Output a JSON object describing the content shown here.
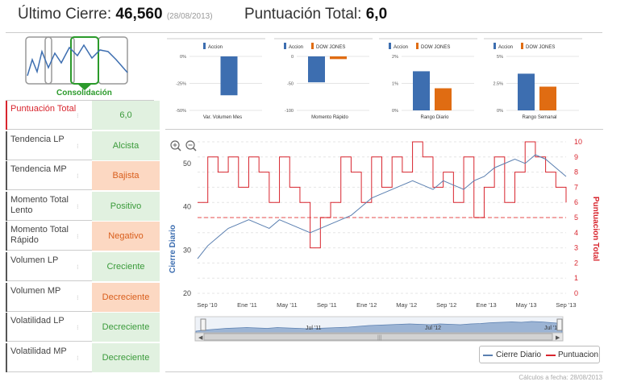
{
  "header": {
    "close_label": "Último Cierre:",
    "close_value": "46,560",
    "close_date": "(28/08/2013)",
    "score_label": "Puntuación Total:",
    "score_value": "6,0"
  },
  "phase": {
    "label": "Consolidación"
  },
  "rows": [
    {
      "label": "Puntuación Total",
      "value": "6,0",
      "tone": "green",
      "highlight": true
    },
    {
      "label": "Tendencia LP",
      "value": "Alcista",
      "tone": "green"
    },
    {
      "label": "Tendencia MP",
      "value": "Bajista",
      "tone": "orange"
    },
    {
      "label": "Momento Total Lento",
      "value": "Positivo",
      "tone": "green"
    },
    {
      "label": "Momento Total Rápido",
      "value": "Negativo",
      "tone": "orange"
    },
    {
      "label": "Volumen LP",
      "value": "Creciente",
      "tone": "green"
    },
    {
      "label": "Volumen MP",
      "value": "Decreciente",
      "tone": "orange"
    },
    {
      "label": "Volatilidad LP",
      "value": "Decreciente",
      "tone": "green"
    },
    {
      "label": "Volatilidad MP",
      "value": "Decreciente",
      "tone": "green"
    }
  ],
  "colors": {
    "accion": "#3d6eb0",
    "dowjones": "#e06c12",
    "red": "#d8252e",
    "blue": "#5a7fb0"
  },
  "chart_data": [
    {
      "type": "bar",
      "title": "Var. Volumen Mes",
      "legend": [
        "Accion"
      ],
      "series": [
        {
          "name": "Accion",
          "values": [
            -36
          ]
        }
      ],
      "yticks": [
        "0%",
        "-25%",
        "-50%"
      ],
      "ylim": [
        -50,
        0
      ]
    },
    {
      "type": "bar",
      "title": "Momento Rápido",
      "legend": [
        "Accion",
        "DOW JONES"
      ],
      "series": [
        {
          "name": "Accion",
          "values": [
            -48
          ]
        },
        {
          "name": "DOW JONES",
          "values": [
            -5
          ]
        }
      ],
      "yticks": [
        "0",
        "-50",
        "-100"
      ],
      "ylim": [
        -100,
        0
      ]
    },
    {
      "type": "bar",
      "title": "Rango Diario",
      "legend": [
        "Accion",
        "DOW JONES"
      ],
      "series": [
        {
          "name": "Accion",
          "values": [
            1.45
          ]
        },
        {
          "name": "DOW JONES",
          "values": [
            0.82
          ]
        }
      ],
      "yticks": [
        "2%",
        "1%",
        "0%"
      ],
      "ylim": [
        0,
        2
      ]
    },
    {
      "type": "bar",
      "title": "Rango Semanal",
      "legend": [
        "Accion",
        "DOW JONES"
      ],
      "series": [
        {
          "name": "Accion",
          "values": [
            3.4
          ]
        },
        {
          "name": "DOW JONES",
          "values": [
            2.2
          ]
        }
      ],
      "yticks": [
        "5%",
        "2.5%",
        "0%"
      ],
      "ylim": [
        0,
        5
      ]
    },
    {
      "type": "line",
      "title": "",
      "ylabel": "Cierre Diario",
      "y2label": "Puntuacion Total",
      "ylim": [
        20,
        55
      ],
      "y2lim": [
        0,
        10
      ],
      "yticks": [
        "20",
        "30",
        "40",
        "50"
      ],
      "y2ticks": [
        "0",
        "1",
        "2",
        "3",
        "4",
        "5",
        "6",
        "7",
        "8",
        "9",
        "10"
      ],
      "xticks": [
        "Sep '10",
        "Ene '11",
        "May '11",
        "Sep '11",
        "Ene '12",
        "May '12",
        "Sep '12",
        "Ene '13",
        "May '13",
        "Sep '13"
      ],
      "navigator_ticks": [
        "Jul '11",
        "Jul '12",
        "Jul '13"
      ],
      "threshold": 5,
      "series": [
        {
          "name": "Cierre Diario",
          "x": [
            0,
            1,
            2,
            3,
            4,
            5,
            6,
            7,
            8,
            9,
            10,
            11,
            12,
            13,
            14,
            15,
            16,
            17,
            18,
            19,
            20,
            21,
            22,
            23,
            24,
            25,
            26,
            27,
            28,
            29,
            30,
            31,
            32,
            33,
            34,
            35,
            36
          ],
          "values": [
            28,
            31,
            33,
            35,
            36,
            37,
            36,
            35,
            37,
            36,
            35,
            34,
            35,
            36,
            37,
            38,
            40,
            42,
            43,
            44,
            45,
            46,
            45,
            44,
            46,
            45,
            44,
            46,
            47,
            49,
            50,
            51,
            50,
            52,
            51,
            49,
            47
          ]
        },
        {
          "name": "Puntuacion",
          "x": [
            0,
            1,
            2,
            3,
            4,
            5,
            6,
            7,
            8,
            9,
            10,
            11,
            12,
            13,
            14,
            15,
            16,
            17,
            18,
            19,
            20,
            21,
            22,
            23,
            24,
            25,
            26,
            27,
            28,
            29,
            30,
            31,
            32,
            33,
            34,
            35,
            36
          ],
          "values": [
            6,
            9,
            8,
            9,
            7,
            9,
            8,
            6,
            9,
            7,
            6,
            3,
            5,
            6,
            9,
            8,
            6,
            9,
            7,
            9,
            8,
            10,
            9,
            7,
            8,
            6,
            9,
            5,
            7,
            9,
            6,
            8,
            10,
            9,
            8,
            7,
            6
          ]
        }
      ],
      "legend": [
        "Cierre Diario",
        "Puntuacion"
      ]
    }
  ],
  "footer": "Cálculos a fecha: 28/08/2013"
}
